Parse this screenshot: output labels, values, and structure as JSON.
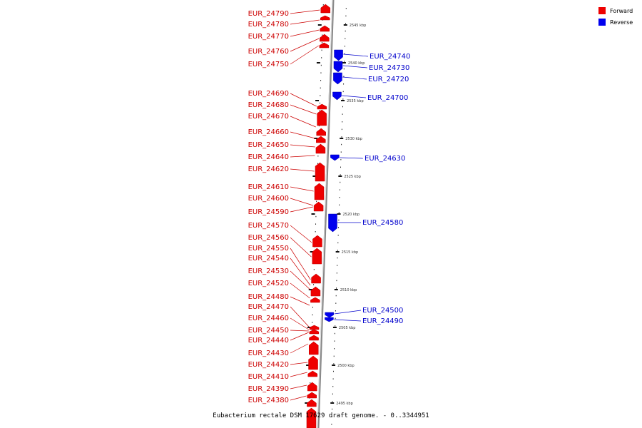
{
  "caption": "Eubacterium rectale DSM 17629 draft genome. - 0..3344951",
  "legend": [
    {
      "label": "Forward",
      "color": "#ee0000"
    },
    {
      "label": "Reverse",
      "color": "#0000ee"
    }
  ],
  "ticks": [
    "2545 kbp",
    "2540 kbp",
    "2535 kbp",
    "2530 kbp",
    "2525 kbp",
    "2520 kbp",
    "2515 kbp",
    "2510 kbp",
    "2505 kbp",
    "2500 kbp",
    "2495 kbp"
  ],
  "forward_genes": [
    "EUR_24790",
    "EUR_24780",
    "EUR_24770",
    "EUR_24760",
    "EUR_24750",
    "EUR_24690",
    "EUR_24680",
    "EUR_24670",
    "EUR_24660",
    "EUR_24650",
    "EUR_24640",
    "EUR_24620",
    "EUR_24610",
    "EUR_24600",
    "EUR_24590",
    "EUR_24570",
    "EUR_24560",
    "EUR_24550",
    "EUR_24540",
    "EUR_24530",
    "EUR_24520",
    "EUR_24480",
    "EUR_24470",
    "EUR_24460",
    "EUR_24450",
    "EUR_24440",
    "EUR_24430",
    "EUR_24420",
    "EUR_24410",
    "EUR_24390",
    "EUR_24380"
  ],
  "reverse_genes": [
    "EUR_24740",
    "EUR_24730",
    "EUR_24720",
    "EUR_24700",
    "EUR_24630",
    "EUR_24580",
    "EUR_24500",
    "EUR_24490"
  ]
}
